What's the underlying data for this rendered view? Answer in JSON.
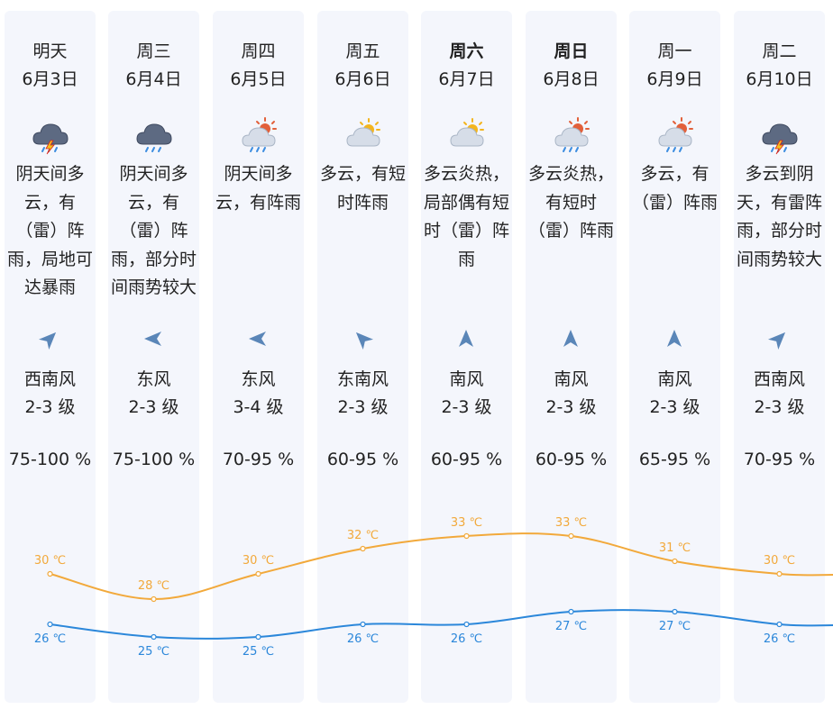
{
  "days": [
    {
      "weekday": "明天",
      "bold": false,
      "date": "6月3日",
      "icon": "thunderstorm-icon",
      "desc": [
        "阴天间多",
        "云，有",
        "（雷）阵",
        "雨，局地可",
        "达暴雨"
      ],
      "wind_dir": "西南风",
      "wind_deg": 225,
      "wind_level": "2-3 级",
      "humidity": "75-100 %"
    },
    {
      "weekday": "周三",
      "bold": false,
      "date": "6月4日",
      "icon": "rain-cloud-icon",
      "desc": [
        "阴天间多",
        "云，有",
        "（雷）阵",
        "雨，部分时",
        "间雨势较大"
      ],
      "wind_dir": "东风",
      "wind_deg": 90,
      "wind_level": "2-3 级",
      "humidity": "75-100 %"
    },
    {
      "weekday": "周四",
      "bold": false,
      "date": "6月5日",
      "icon": "sun-cloud-rain-icon",
      "desc": [
        "阴天间多",
        "云，有阵雨"
      ],
      "wind_dir": "东风",
      "wind_deg": 90,
      "wind_level": "3-4 级",
      "humidity": "70-95 %"
    },
    {
      "weekday": "周五",
      "bold": false,
      "date": "6月6日",
      "icon": "partly-cloudy-icon",
      "desc": [
        "多云，有短",
        "时阵雨"
      ],
      "wind_dir": "东南风",
      "wind_deg": 135,
      "wind_level": "2-3 级",
      "humidity": "60-95 %"
    },
    {
      "weekday": "周六",
      "bold": true,
      "date": "6月7日",
      "icon": "partly-cloudy-icon",
      "desc": [
        "多云炎热，",
        "局部偶有短",
        "时（雷）阵",
        "雨"
      ],
      "wind_dir": "南风",
      "wind_deg": 180,
      "wind_level": "2-3 级",
      "humidity": "60-95 %"
    },
    {
      "weekday": "周日",
      "bold": true,
      "date": "6月8日",
      "icon": "sun-cloud-rain-icon",
      "desc": [
        "多云炎热，",
        "有短时",
        "（雷）阵雨"
      ],
      "wind_dir": "南风",
      "wind_deg": 180,
      "wind_level": "2-3 级",
      "humidity": "60-95 %"
    },
    {
      "weekday": "周一",
      "bold": false,
      "date": "6月9日",
      "icon": "sun-cloud-rain-icon",
      "desc": [
        "多云，有",
        "（雷）阵雨"
      ],
      "wind_dir": "南风",
      "wind_deg": 180,
      "wind_level": "2-3 级",
      "humidity": "65-95 %"
    },
    {
      "weekday": "周二",
      "bold": false,
      "date": "6月10日",
      "icon": "thunderstorm-icon",
      "desc": [
        "多云到阴",
        "天，有雷阵",
        "雨，部分时",
        "间雨势较大"
      ],
      "wind_dir": "西南风",
      "wind_deg": 225,
      "wind_level": "2-3 级",
      "humidity": "70-95 %"
    }
  ],
  "colors": {
    "high": "#f2a93b",
    "low": "#2b87da",
    "col_bg": "#f4f6fc",
    "arrow": "#5a86b8"
  },
  "chart_data": {
    "type": "line",
    "series": [
      {
        "values": [
          30,
          28,
          30,
          32,
          33,
          33,
          31,
          30
        ],
        "labels": [
          "30 ℃",
          "28 ℃",
          "30 ℃",
          "32 ℃",
          "33 ℃",
          "33 ℃",
          "31 ℃",
          "30 ℃"
        ]
      },
      {
        "values": [
          26,
          25,
          25,
          26,
          26,
          27,
          27,
          26
        ],
        "labels": [
          "26 ℃",
          "25 ℃",
          "25 ℃",
          "26 ℃",
          "26 ℃",
          "27 ℃",
          "27 ℃",
          "26 ℃"
        ]
      }
    ]
  }
}
